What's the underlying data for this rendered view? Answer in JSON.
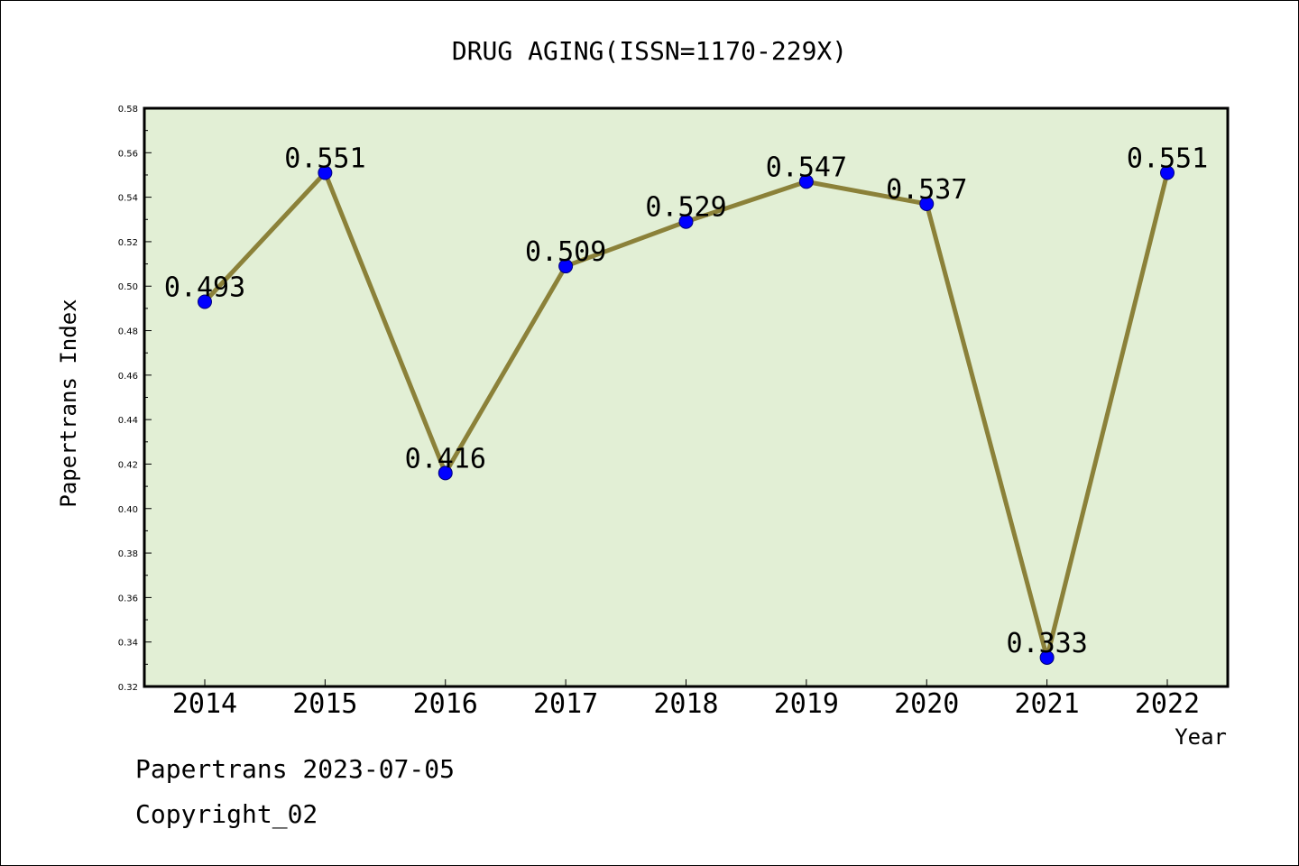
{
  "chart_data": {
    "type": "line",
    "title": "DRUG AGING(ISSN=1170-229X)",
    "xlabel": "Year",
    "ylabel": "Papertrans Index",
    "categories": [
      "2014",
      "2015",
      "2016",
      "2017",
      "2018",
      "2019",
      "2020",
      "2021",
      "2022"
    ],
    "series": [
      {
        "values": [
          0.493,
          0.551,
          0.416,
          0.509,
          0.529,
          0.547,
          0.537,
          0.333,
          0.551
        ],
        "data_labels": [
          "0.493",
          "0.551",
          "0.416",
          "0.509",
          "0.529",
          "0.547",
          "0.537",
          "0.333",
          "0.551"
        ]
      }
    ],
    "ylim": [
      0.32,
      0.58
    ],
    "yticks": [
      "0.32",
      "0.34",
      "0.36",
      "0.38",
      "0.40",
      "0.42",
      "0.44",
      "0.46",
      "0.48",
      "0.50",
      "0.52",
      "0.54",
      "0.56",
      "0.58"
    ],
    "grid": false,
    "legend": "none",
    "colors": {
      "plot_background": "#e2efd5",
      "line": "#8b8139",
      "marker": "#0000ff"
    }
  },
  "footer": {
    "line1": "Papertrans 2023-07-05",
    "line2": "Copyright_02"
  }
}
